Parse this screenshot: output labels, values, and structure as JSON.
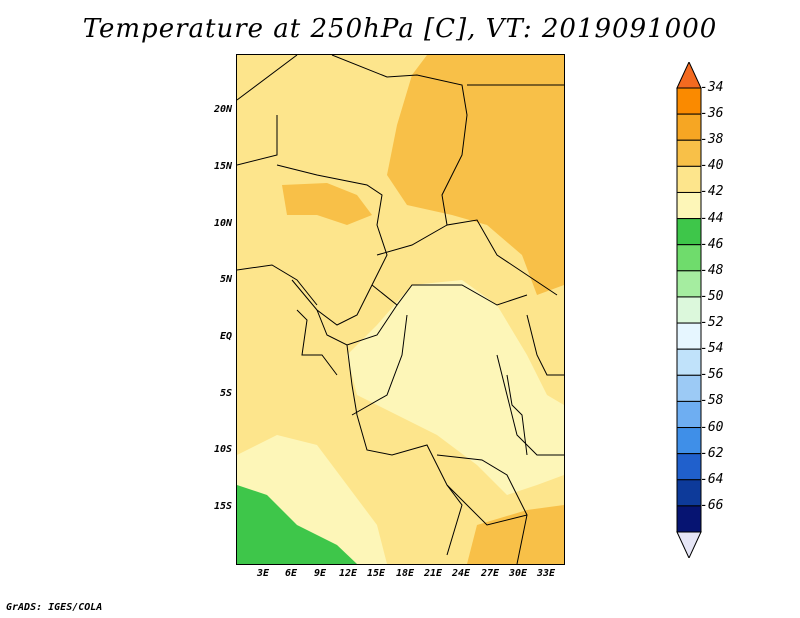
{
  "title": "Temperature at 250hPa [C], VT: 2019091000",
  "footer": "GrADS: IGES/COLA",
  "map": {
    "y_ticks": [
      "20N",
      "15N",
      "10N",
      "5N",
      "EQ",
      "5S",
      "10S",
      "15S"
    ],
    "x_ticks": [
      "3E",
      "6E",
      "9E",
      "12E",
      "15E",
      "18E",
      "21E",
      "24E",
      "27E",
      "30E",
      "33E"
    ]
  },
  "colorbar": {
    "labels": [
      "-34",
      "-36",
      "-38",
      "-40",
      "-42",
      "-44",
      "-46",
      "-48",
      "-50",
      "-52",
      "-54",
      "-56",
      "-58",
      "-60",
      "-62",
      "-64",
      "-66"
    ],
    "colors": [
      "#f36a20",
      "#fa8a00",
      "#f6a623",
      "#f8c048",
      "#fde58c",
      "#fdf6b8",
      "#3ec64a",
      "#6fdc6c",
      "#a5eda0",
      "#dcf8dc",
      "#e6f6ff",
      "#c0e2fa",
      "#9ccaf5",
      "#6eaef2",
      "#3f8fe8",
      "#2060cc",
      "#0d3a9a",
      "#061472",
      "#e6e6f6"
    ]
  }
}
